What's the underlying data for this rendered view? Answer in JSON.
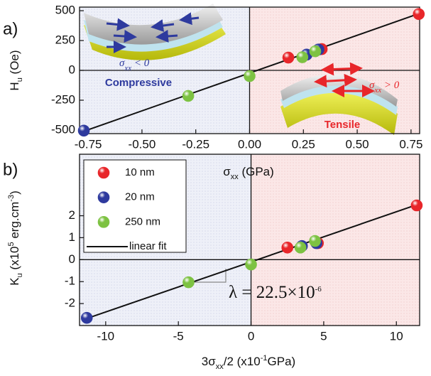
{
  "chart_data": [
    {
      "type": "scatter",
      "panel_label": "a)",
      "x_label": [
        {
          "text": "σ"
        },
        {
          "sub": "xx"
        },
        {
          "text": " (GPa)"
        }
      ],
      "y_label": [
        {
          "text": "H"
        },
        {
          "sub": "u"
        },
        {
          "text": " (Oe)"
        }
      ],
      "xlim": [
        -0.79,
        0.79
      ],
      "ylim": [
        -530,
        530
      ],
      "xticks": [
        -0.75,
        {
          "value": -0.5,
          "label": "-0.50"
        },
        -0.25,
        {
          "value": 0,
          "label": "0.00"
        },
        0.25,
        {
          "value": 0.5,
          "label": "0.50"
        },
        0.75
      ],
      "yticks": [
        -500,
        -250,
        0,
        250,
        500
      ],
      "annotations": [
        "Compressive",
        "Tensile"
      ],
      "inset_labels": [
        [
          {
            "text": "σ"
          },
          {
            "sub": "xx"
          },
          {
            "text": " < 0"
          }
        ],
        [
          {
            "text": "σ"
          },
          {
            "sub": "xx"
          },
          {
            "text": " > 0"
          }
        ]
      ],
      "series": [
        {
          "type": "line",
          "color": "#111111",
          "x": [
            -0.77,
            0.786
          ],
          "values": [
            -510,
            475
          ]
        },
        {
          "color": "#e8262a",
          "x": [
            0.18,
            0.335,
            0.786
          ],
          "values": [
            107,
            178,
            472
          ]
        },
        {
          "color": "#2e3a9e",
          "x": [
            -0.77,
            0.265,
            0.32
          ],
          "values": [
            -505,
            132,
            175
          ]
        },
        {
          "color": "#7dc242",
          "x": [
            -0.285,
            0.0,
            0.245,
            0.305
          ],
          "values": [
            -214,
            -48,
            110,
            160
          ]
        }
      ]
    },
    {
      "type": "scatter",
      "panel_label": "b)",
      "x_label": [
        {
          "text": "3σ"
        },
        {
          "sub": "xx"
        },
        {
          "text": "/2 (x10"
        },
        {
          "sup": "-1"
        },
        {
          "text": "GPa)"
        }
      ],
      "y_label": [
        {
          "text": "K"
        },
        {
          "sub": "u"
        },
        {
          "text": " (x10"
        },
        {
          "sup": "5"
        },
        {
          "text": " erg.cm"
        },
        {
          "sup": "-3"
        },
        {
          "text": ")"
        }
      ],
      "xlim": [
        -11.8,
        11.6
      ],
      "ylim": [
        -3.0,
        4.8
      ],
      "xticks": [
        -10,
        -5,
        0,
        5,
        10
      ],
      "yticks": [
        -2,
        -1,
        0,
        1,
        2
      ],
      "lambda_label": [
        {
          "text": "λ = 22.5×10"
        },
        {
          "sup": "-6"
        }
      ],
      "series": [
        {
          "name": "10 nm",
          "color": "#e8262a",
          "x": [
            2.5,
            4.6,
            11.4
          ],
          "values": [
            0.55,
            0.75,
            2.47
          ]
        },
        {
          "name": "20 nm",
          "color": "#2e3a9e",
          "x": [
            -11.3,
            3.5,
            4.5
          ],
          "values": [
            -2.65,
            0.62,
            0.75
          ]
        },
        {
          "name": "250 nm",
          "color": "#7dc242",
          "x": [
            -4.3,
            0.0,
            3.4,
            4.4
          ],
          "values": [
            -1.03,
            -0.22,
            0.55,
            0.85
          ]
        },
        {
          "name": "linear fit",
          "type": "line",
          "color": "#111111",
          "x": [
            -11.3,
            11.4
          ],
          "values": [
            -2.68,
            2.5
          ]
        }
      ]
    }
  ]
}
